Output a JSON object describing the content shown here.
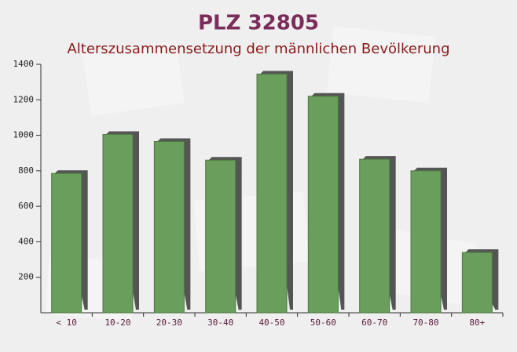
{
  "chart_data": {
    "type": "bar",
    "title": "PLZ 32805",
    "subtitle": "Alterszusammensetzung der männlichen Bevölkerung",
    "categories": [
      "< 10",
      "10-20",
      "20-30",
      "30-40",
      "40-50",
      "50-60",
      "60-70",
      "70-80",
      "80+"
    ],
    "values": [
      785,
      1005,
      965,
      860,
      1345,
      1220,
      865,
      800,
      340
    ],
    "color": "#6a9e5c",
    "ylim": [
      0,
      1400
    ],
    "yticks": [
      200,
      400,
      600,
      800,
      1000,
      1200,
      1400
    ],
    "grid": false
  }
}
